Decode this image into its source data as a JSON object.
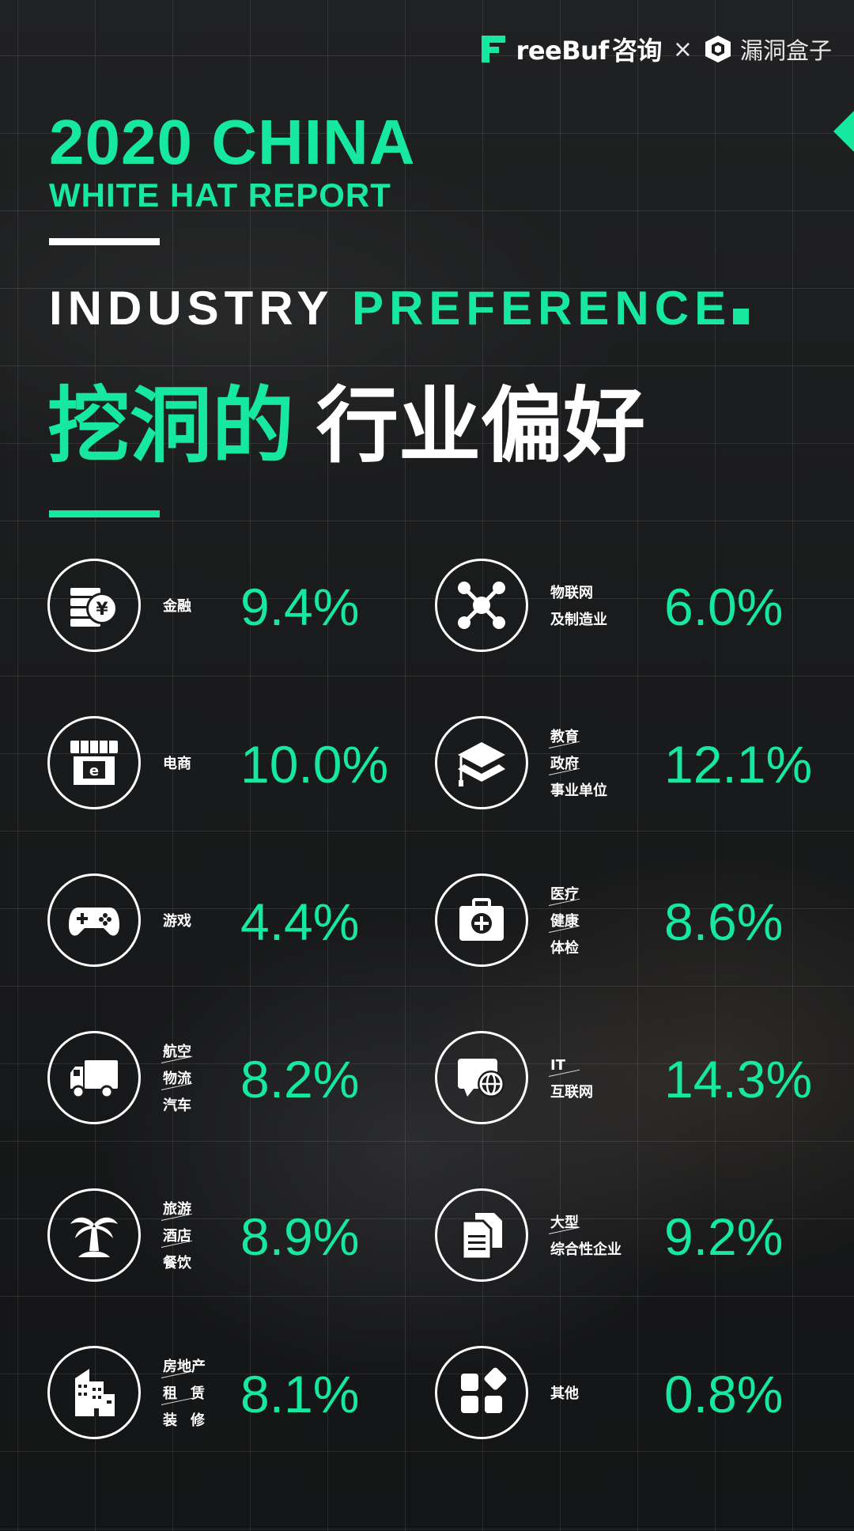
{
  "header": {
    "brand1": "reeBuf",
    "brand1_suffix": "咨询",
    "separator": "×",
    "brand2": "漏洞盒子"
  },
  "title": {
    "line1": "2020 CHINA",
    "line2": "WHITE HAT REPORT"
  },
  "heading": {
    "en_white": "INDUSTRY",
    "en_green": "PREFERENCE",
    "cn_green": "挖洞的",
    "cn_white": "行业偏好"
  },
  "colors": {
    "accent": "#17e8a0",
    "text": "#ffffff",
    "background": "#1b1c1d"
  },
  "industries": [
    {
      "icon": "finance-coins-yen-icon",
      "labels": [
        "金融"
      ],
      "percent": "9.4%"
    },
    {
      "icon": "iot-network-nodes-icon",
      "labels": [
        "物联网",
        "及制造业"
      ],
      "percent": "6.0%"
    },
    {
      "icon": "ecommerce-storefront-icon",
      "labels": [
        "电商"
      ],
      "percent": "10.0%"
    },
    {
      "icon": "education-graduation-cap-icon",
      "labels": [
        "教育",
        "政府",
        "事业单位"
      ],
      "percent": "12.1%"
    },
    {
      "icon": "gamepad-icon",
      "labels": [
        "游戏"
      ],
      "percent": "4.4%"
    },
    {
      "icon": "medical-kit-icon",
      "labels": [
        "医疗",
        "健康",
        "体检"
      ],
      "percent": "8.6%"
    },
    {
      "icon": "delivery-truck-icon",
      "labels": [
        "航空",
        "物流",
        "汽车"
      ],
      "percent": "8.2%"
    },
    {
      "icon": "internet-monitor-globe-icon",
      "labels": [
        "IT",
        "互联网"
      ],
      "percent": "14.3%"
    },
    {
      "icon": "palm-tree-icon",
      "labels": [
        "旅游",
        "酒店",
        "餐饮"
      ],
      "percent": "8.9%"
    },
    {
      "icon": "enterprise-documents-icon",
      "labels": [
        "大型",
        "综合性企业"
      ],
      "percent": "9.2%"
    },
    {
      "icon": "buildings-icon",
      "labels": [
        "房地产",
        "租赁",
        "装修"
      ],
      "percent": "8.1%"
    },
    {
      "icon": "other-apps-grid-icon",
      "labels": [
        "其他"
      ],
      "percent": "0.8%"
    }
  ]
}
